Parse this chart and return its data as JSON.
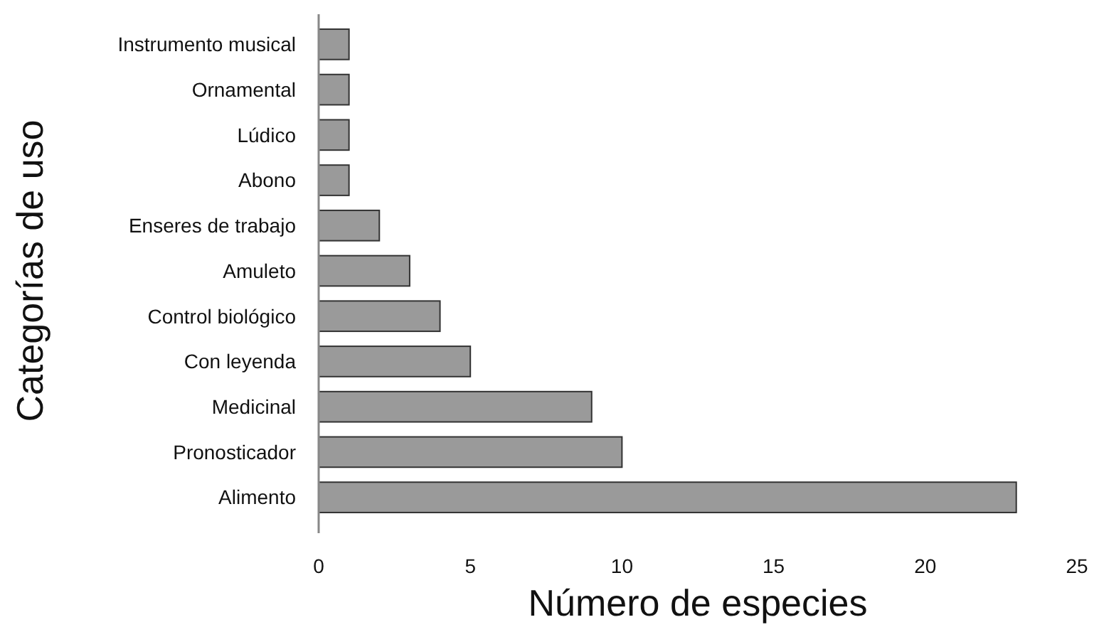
{
  "chart_data": {
    "type": "bar",
    "orientation": "horizontal",
    "xlabel": "Número de especies",
    "ylabel": "Categorías de uso",
    "categories": [
      "Instrumento musical",
      "Ornamental",
      "Lúdico",
      "Abono",
      "Enseres de trabajo",
      "Amuleto",
      "Control biológico",
      "Con leyenda",
      "Medicinal",
      "Pronosticador",
      "Alimento"
    ],
    "values": [
      1,
      1,
      1,
      1,
      2,
      3,
      4,
      5,
      9,
      10,
      23
    ],
    "color": "#9a9a9a",
    "xlim": [
      0,
      25
    ],
    "xticks": [
      0,
      5,
      10,
      15,
      20,
      25
    ]
  }
}
